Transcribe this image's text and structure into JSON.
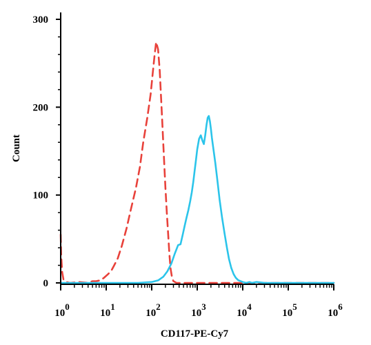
{
  "chart_data": {
    "type": "line",
    "title": "",
    "xlabel": "CD117-PE-Cy7",
    "ylabel": "Count",
    "x_scale": "log",
    "xlim": [
      1,
      1000000
    ],
    "ylim": [
      0,
      300
    ],
    "grid": false,
    "legend": "none",
    "x_ticks": [
      {
        "value": 1,
        "base": "10",
        "exp": "0"
      },
      {
        "value": 10,
        "base": "10",
        "exp": "1"
      },
      {
        "value": 100,
        "base": "10",
        "exp": "2"
      },
      {
        "value": 1000,
        "base": "10",
        "exp": "3"
      },
      {
        "value": 10000,
        "base": "10",
        "exp": "4"
      },
      {
        "value": 100000,
        "base": "10",
        "exp": "5"
      },
      {
        "value": 1000000,
        "base": "10",
        "exp": "6"
      }
    ],
    "y_ticks": [
      {
        "value": 0,
        "label": "0"
      },
      {
        "value": 100,
        "label": "100"
      },
      {
        "value": 200,
        "label": "200"
      },
      {
        "value": 300,
        "label": "300"
      }
    ],
    "series": [
      {
        "style": "dashed",
        "color": "#e8413a",
        "x": [
          1,
          1.03,
          1.08,
          1.15,
          1.3,
          1.6,
          2.5,
          4,
          5,
          6,
          7.5,
          9,
          11,
          13,
          15,
          18,
          22,
          28,
          35,
          45,
          55,
          65,
          80,
          95,
          105,
          115,
          125,
          138,
          150,
          160,
          170,
          180,
          190,
          200,
          215,
          230,
          245,
          260,
          280,
          300,
          350,
          450,
          700,
          1200,
          3000,
          10000,
          100000,
          1000000
        ],
        "y": [
          55,
          30,
          12,
          4,
          1,
          0,
          1,
          0,
          2,
          2,
          3,
          6,
          10,
          14,
          20,
          28,
          42,
          62,
          84,
          108,
          132,
          160,
          188,
          215,
          238,
          258,
          274,
          266,
          242,
          212,
          185,
          158,
          132,
          108,
          80,
          55,
          32,
          16,
          6,
          2,
          0,
          0,
          0,
          0,
          0,
          0,
          0,
          0
        ]
      },
      {
        "style": "solid",
        "color": "#2bc4ea",
        "x": [
          1,
          10,
          50,
          100,
          140,
          180,
          220,
          270,
          320,
          380,
          430,
          480,
          530,
          580,
          640,
          700,
          760,
          820,
          880,
          940,
          1000,
          1100,
          1200,
          1300,
          1400,
          1500,
          1600,
          1700,
          1800,
          1900,
          2000,
          2100,
          2250,
          2500,
          2800,
          3100,
          3500,
          4000,
          4500,
          5000,
          5600,
          6300,
          7000,
          8000,
          9000,
          10000,
          12000,
          14000,
          16000,
          20000,
          30000,
          100000,
          1000000
        ],
        "y": [
          0,
          0,
          0,
          1,
          3,
          7,
          13,
          22,
          33,
          43,
          44,
          55,
          65,
          74,
          83,
          93,
          103,
          115,
          128,
          140,
          152,
          164,
          168,
          162,
          158,
          168,
          180,
          188,
          190,
          184,
          175,
          165,
          154,
          136,
          115,
          95,
          75,
          56,
          40,
          27,
          17,
          10,
          6,
          3,
          2,
          1,
          0,
          1,
          0,
          1,
          0,
          0,
          0
        ]
      }
    ]
  }
}
